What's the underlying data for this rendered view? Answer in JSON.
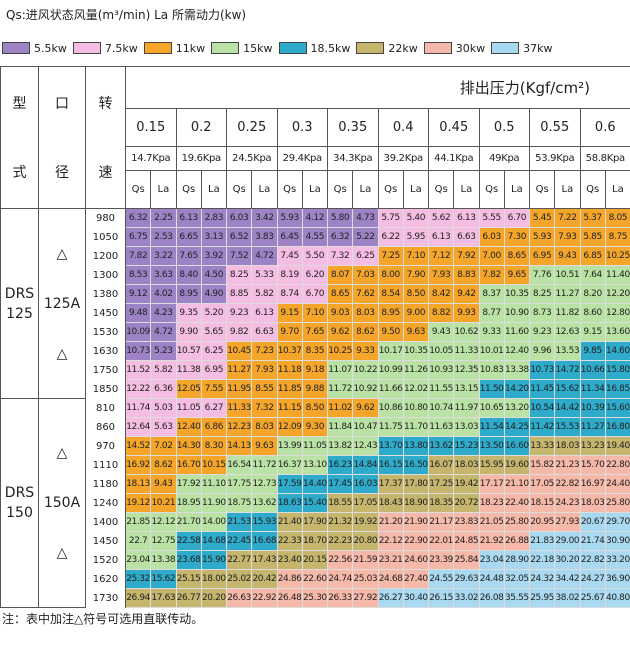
{
  "header": {
    "title": "Qs:进风状态风量(m³/min)  La 所需动力(kw)"
  },
  "legend": [
    {
      "label": "5.5kw",
      "color": "#9d83c6"
    },
    {
      "label": "7.5kw",
      "color": "#f6bde3"
    },
    {
      "label": "11kw",
      "color": "#f5a62a"
    },
    {
      "label": "15kw",
      "color": "#b9e2a4"
    },
    {
      "label": "18.5kw",
      "color": "#2eaacb"
    },
    {
      "label": "22kw",
      "color": "#c6b56c"
    },
    {
      "label": "30kw",
      "color": "#f6b8a8"
    },
    {
      "label": "37kw",
      "color": "#a9d9f0"
    }
  ],
  "table": {
    "col_type": [
      "型",
      "式"
    ],
    "col_bore": [
      "口",
      "径"
    ],
    "col_speed": [
      "转",
      "速"
    ],
    "pressure_title": "排出压力(Kgf/cm²)",
    "pressures": [
      "0.15",
      "0.2",
      "0.25",
      "0.3",
      "0.35",
      "0.4",
      "0.45",
      "0.5",
      "0.55",
      "0.6"
    ],
    "kpa": [
      "14.7Kpa",
      "19.6Kpa",
      "24.5Kpa",
      "29.4Kpa",
      "34.3Kpa",
      "39.2Kpa",
      "44.1Kpa",
      "49Kpa",
      "53.9Kpa",
      "58.8Kpa"
    ],
    "qs": "Qs",
    "la": "La",
    "models": [
      {
        "name": [
          "DRS",
          "125"
        ],
        "bore": "125A",
        "marks": [
          "△",
          "△"
        ],
        "rows": [
          {
            "rpm": "980",
            "values": [
              "6.32",
              "2.25",
              "6.13",
              "2.83",
              "6.03",
              "3.42",
              "5.93",
              "4.12",
              "5.80",
              "4.73",
              "5.75",
              "5.40",
              "5.62",
              "6.13",
              "5.55",
              "6.70",
              "5.45",
              "7.22",
              "5.37",
              "8.05"
            ],
            "colors": [
              0,
              0,
              0,
              0,
              0,
              1,
              1,
              1,
              2,
              2
            ]
          },
          {
            "rpm": "1050",
            "values": [
              "6.75",
              "2.53",
              "6.65",
              "3.13",
              "6.52",
              "3.83",
              "6.45",
              "4.55",
              "6.32",
              "5.22",
              "6.22",
              "5.95",
              "6.13",
              "6.63",
              "6.03",
              "7.30",
              "5.93",
              "7.93",
              "5.85",
              "8.75"
            ],
            "colors": [
              0,
              0,
              0,
              0,
              0,
              1,
              1,
              2,
              2,
              2
            ]
          },
          {
            "rpm": "1200",
            "values": [
              "7.82",
              "3.22",
              "7.65",
              "3.92",
              "7.52",
              "4.72",
              "7.45",
              "5.50",
              "7.32",
              "6.25",
              "7.25",
              "7.10",
              "7.12",
              "7.92",
              "7.00",
              "8.65",
              "6.95",
              "9.43",
              "6.85",
              "10.25"
            ],
            "colors": [
              0,
              0,
              0,
              1,
              1,
              2,
              2,
              2,
              2,
              2
            ]
          },
          {
            "rpm": "1300",
            "values": [
              "8.53",
              "3.63",
              "8.40",
              "4.50",
              "8.25",
              "5.33",
              "8.19",
              "6.20",
              "8.07",
              "7.03",
              "8.00",
              "7.90",
              "7.93",
              "8.83",
              "7.82",
              "9.65",
              "7.76",
              "10.51",
              "7.64",
              "11.40"
            ],
            "colors": [
              0,
              0,
              1,
              1,
              2,
              2,
              2,
              2,
              3,
              3
            ]
          },
          {
            "rpm": "1380",
            "values": [
              "9.12",
              "4.02",
              "8.95",
              "4.90",
              "8.85",
              "5.82",
              "8.74",
              "6.70",
              "8.65",
              "7.62",
              "8.54",
              "8.50",
              "8.42",
              "9.42",
              "8.37",
              "10.35",
              "8.25",
              "11.27",
              "8.20",
              "12.20"
            ],
            "colors": [
              0,
              0,
              1,
              1,
              2,
              2,
              2,
              3,
              3,
              3
            ]
          },
          {
            "rpm": "1450",
            "values": [
              "9.48",
              "4.23",
              "9.35",
              "5.20",
              "9.23",
              "6.13",
              "9.15",
              "7.10",
              "9.03",
              "8.03",
              "8.95",
              "9.00",
              "8.82",
              "9.93",
              "8.77",
              "10.90",
              "8.73",
              "11.82",
              "8.60",
              "12.80"
            ],
            "colors": [
              0,
              1,
              1,
              2,
              2,
              2,
              2,
              3,
              3,
              3
            ]
          },
          {
            "rpm": "1530",
            "values": [
              "10.09",
              "4.72",
              "9.90",
              "5.65",
              "9.82",
              "6.63",
              "9.70",
              "7.65",
              "9.62",
              "8.62",
              "9.50",
              "9.63",
              "9.43",
              "10.62",
              "9.33",
              "11.60",
              "9.23",
              "12.63",
              "9.15",
              "13.60"
            ],
            "colors": [
              0,
              1,
              1,
              2,
              2,
              2,
              3,
              3,
              3,
              3
            ]
          },
          {
            "rpm": "1630",
            "values": [
              "10.73",
              "5.23",
              "10.57",
              "6.25",
              "10.45",
              "7.23",
              "10.37",
              "8.35",
              "10.25",
              "9.33",
              "10.17",
              "10.35",
              "10.05",
              "11.33",
              "10.01",
              "12.40",
              "9.96",
              "13.53",
              "9.85",
              "14.60"
            ],
            "colors": [
              0,
              1,
              2,
              2,
              2,
              3,
              3,
              3,
              3,
              4
            ]
          },
          {
            "rpm": "1750",
            "values": [
              "11.52",
              "5.82",
              "11.38",
              "6.95",
              "11.27",
              "7.93",
              "11.18",
              "9.18",
              "11.07",
              "10.22",
              "10.99",
              "11.26",
              "10.93",
              "12.35",
              "10.83",
              "13.38",
              "10.73",
              "14.72",
              "10.66",
              "15.80"
            ],
            "colors": [
              1,
              1,
              2,
              2,
              3,
              3,
              3,
              3,
              4,
              4
            ]
          },
          {
            "rpm": "1850",
            "values": [
              "12.22",
              "6.36",
              "12.05",
              "7.55",
              "11.95",
              "8.55",
              "11.85",
              "9.88",
              "11.72",
              "10.92",
              "11.66",
              "12.02",
              "11.55",
              "13.15",
              "11.50",
              "14.20",
              "11.45",
              "15.62",
              "11.34",
              "16.85"
            ],
            "colors": [
              1,
              2,
              2,
              2,
              3,
              3,
              3,
              4,
              4,
              4
            ]
          }
        ]
      },
      {
        "name": [
          "DRS",
          "150"
        ],
        "bore": "150A",
        "marks": [
          "△",
          "△"
        ],
        "rows": [
          {
            "rpm": "810",
            "values": [
              "11.74",
              "5.03",
              "11.05",
              "6.27",
              "11.33",
              "7.32",
              "11.15",
              "8.50",
              "11.02",
              "9.62",
              "10.86",
              "10.80",
              "10.74",
              "11.97",
              "10.65",
              "13.20",
              "10.54",
              "14.42",
              "10.39",
              "15.60"
            ],
            "colors": [
              1,
              1,
              2,
              2,
              2,
              3,
              3,
              3,
              4,
              4
            ]
          },
          {
            "rpm": "860",
            "values": [
              "12.64",
              "5.63",
              "12.40",
              "6.86",
              "12.23",
              "8.03",
              "12.09",
              "9.30",
              "11.84",
              "10.47",
              "11.75",
              "11.70",
              "11.63",
              "13.03",
              "11.54",
              "14.25",
              "11.42",
              "15.53",
              "11.27",
              "16.80"
            ],
            "colors": [
              1,
              2,
              2,
              2,
              3,
              3,
              3,
              4,
              4,
              4
            ]
          },
          {
            "rpm": "970",
            "values": [
              "14.52",
              "7.02",
              "14.30",
              "8.30",
              "14.13",
              "9.63",
              "13.99",
              "11.05",
              "13.82",
              "12.43",
              "13.70",
              "13.80",
              "13.62",
              "15.23",
              "13.50",
              "16.60",
              "13.33",
              "18.03",
              "13.23",
              "19.40"
            ],
            "colors": [
              2,
              2,
              2,
              3,
              3,
              4,
              4,
              4,
              5,
              5
            ]
          },
          {
            "rpm": "1110",
            "values": [
              "16.92",
              "8.62",
              "16.70",
              "10.15",
              "16.54",
              "11.72",
              "16.37",
              "13.10",
              "16.23",
              "14.84",
              "16.15",
              "16.50",
              "16.07",
              "18.03",
              "15.95",
              "19.60",
              "15.82",
              "21.23",
              "15.70",
              "22.80"
            ],
            "colors": [
              2,
              2,
              3,
              3,
              4,
              4,
              5,
              5,
              6,
              6
            ]
          },
          {
            "rpm": "1180",
            "values": [
              "18.13",
              "9.43",
              "17.92",
              "11.10",
              "17.75",
              "12.73",
              "17.59",
              "14.40",
              "17.45",
              "16.03",
              "17.37",
              "17.80",
              "17.25",
              "19.42",
              "17.17",
              "21.10",
              "17.05",
              "22.82",
              "16.97",
              "24.40"
            ],
            "colors": [
              2,
              3,
              3,
              4,
              4,
              5,
              5,
              6,
              6,
              6
            ]
          },
          {
            "rpm": "1240",
            "values": [
              "19.12",
              "10.21",
              "18.95",
              "11.90",
              "18.75",
              "13.62",
              "18.63",
              "15.40",
              "18.55",
              "17.05",
              "18.43",
              "18.90",
              "18.35",
              "20.72",
              "18.23",
              "22.40",
              "18.15",
              "24.23",
              "18.03",
              "25.80"
            ],
            "colors": [
              2,
              3,
              3,
              4,
              5,
              5,
              5,
              6,
              6,
              6
            ]
          },
          {
            "rpm": "1400",
            "values": [
              "21.85",
              "12.12",
              "21.70",
              "14.00",
              "21.53",
              "15.93",
              "21.40",
              "17.90",
              "21.32",
              "19.92",
              "21.20",
              "21.90",
              "21.17",
              "23.83",
              "21.05",
              "25.80",
              "20.95",
              "27.93",
              "20.67",
              "29.70"
            ],
            "colors": [
              3,
              3,
              4,
              5,
              5,
              6,
              6,
              6,
              6,
              7
            ]
          },
          {
            "rpm": "1450",
            "values": [
              "22.7",
              "12.75",
              "22.58",
              "14.68",
              "22.45",
              "16.68",
              "22.33",
              "18.70",
              "22.23",
              "20.80",
              "22.12",
              "22.90",
              "22.01",
              "24.85",
              "21.92",
              "26.88",
              "21.83",
              "29.00",
              "21.74",
              "30.90"
            ],
            "colors": [
              3,
              4,
              4,
              5,
              5,
              6,
              6,
              6,
              7,
              7
            ]
          },
          {
            "rpm": "1520",
            "values": [
              "23.04",
              "13.38",
              "23.68",
              "15.90",
              "22.77",
              "17.43",
              "23.40",
              "20.15",
              "22.56",
              "21.59",
              "23.21",
              "24.60",
              "23.39",
              "25.84",
              "23.04",
              "28.90",
              "22.18",
              "30.20",
              "22.82",
              "33.20"
            ],
            "colors": [
              3,
              4,
              5,
              5,
              6,
              6,
              6,
              7,
              7,
              7
            ]
          },
          {
            "rpm": "1620",
            "values": [
              "25.32",
              "15.62",
              "25.15",
              "18.00",
              "25.02",
              "20.42",
              "24.86",
              "22.60",
              "24.74",
              "25.03",
              "24.68",
              "27.40",
              "24.55",
              "29.63",
              "24.48",
              "32.05",
              "24.32",
              "34.42",
              "24.27",
              "36.90"
            ],
            "colors": [
              4,
              5,
              5,
              6,
              6,
              6,
              7,
              7,
              7,
              7
            ]
          },
          {
            "rpm": "1730",
            "values": [
              "26.94",
              "17.63",
              "26.77",
              "20.20",
              "26.63",
              "22.92",
              "26.48",
              "25.30",
              "26.33",
              "27.92",
              "26.27",
              "30.40",
              "26.15",
              "33.02",
              "26.08",
              "35.55",
              "25.95",
              "38.02",
              "25.67",
              "40.80"
            ],
            "colors": [
              5,
              5,
              6,
              6,
              6,
              7,
              7,
              7,
              7,
              7
            ]
          }
        ]
      }
    ]
  },
  "footnote": "注：表中加注△符号可选用直联传动。"
}
